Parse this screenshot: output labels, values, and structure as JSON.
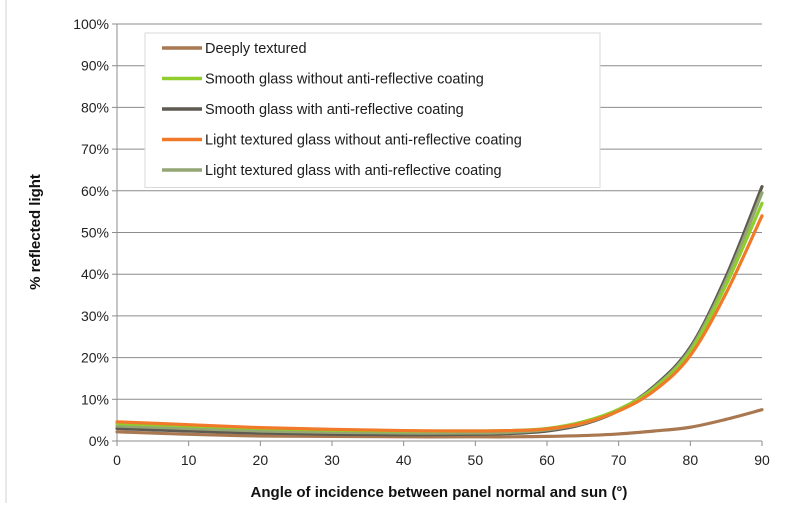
{
  "chart_data": {
    "type": "line",
    "title": "",
    "xlabel": "Angle of incidence between panel normal and sun (°)",
    "ylabel": "% reflected light",
    "xlim": [
      0,
      90
    ],
    "ylim": [
      0,
      100
    ],
    "x_ticks": [
      "0",
      "10",
      "20",
      "30",
      "40",
      "50",
      "60",
      "70",
      "80",
      "90"
    ],
    "y_ticks": [
      "0%",
      "10%",
      "20%",
      "30%",
      "40%",
      "50%",
      "60%",
      "70%",
      "80%",
      "90%",
      "100%"
    ],
    "grid": "horizontal",
    "legend_position": "top-left",
    "x": [
      0,
      10,
      20,
      30,
      40,
      50,
      55,
      60,
      65,
      70,
      75,
      80,
      85,
      90
    ],
    "series": [
      {
        "name": "Deeply textured",
        "color": "#a97851",
        "values": [
          2.2,
          1.6,
          1.2,
          1.1,
          1.0,
          1.0,
          1.0,
          1.1,
          1.3,
          1.7,
          2.4,
          3.3,
          5.2,
          7.5
        ]
      },
      {
        "name": "Smooth glass without anti-reflective coating",
        "color": "#8fce2c",
        "values": [
          4.2,
          3.6,
          3.0,
          2.6,
          2.4,
          2.4,
          2.5,
          3.0,
          4.6,
          7.6,
          12.7,
          21.5,
          37.5,
          57.0
        ]
      },
      {
        "name": "Smooth glass with anti-reflective coating",
        "color": "#5f5a51",
        "values": [
          3.0,
          2.4,
          1.9,
          1.6,
          1.5,
          1.6,
          1.8,
          2.4,
          4.0,
          7.3,
          13.2,
          22.5,
          39.5,
          61.0
        ]
      },
      {
        "name": "Light textured glass without anti-reflective coating",
        "color": "#f07a2a",
        "values": [
          4.6,
          3.9,
          3.2,
          2.8,
          2.5,
          2.4,
          2.5,
          2.9,
          4.3,
          7.2,
          12.1,
          20.5,
          35.5,
          54.0
        ]
      },
      {
        "name": "Light textured glass with anti-reflective coating",
        "color": "#94a673",
        "values": [
          3.6,
          3.0,
          2.4,
          2.1,
          1.9,
          1.9,
          2.1,
          2.7,
          4.2,
          7.4,
          12.9,
          22.0,
          38.5,
          59.5
        ]
      }
    ]
  }
}
